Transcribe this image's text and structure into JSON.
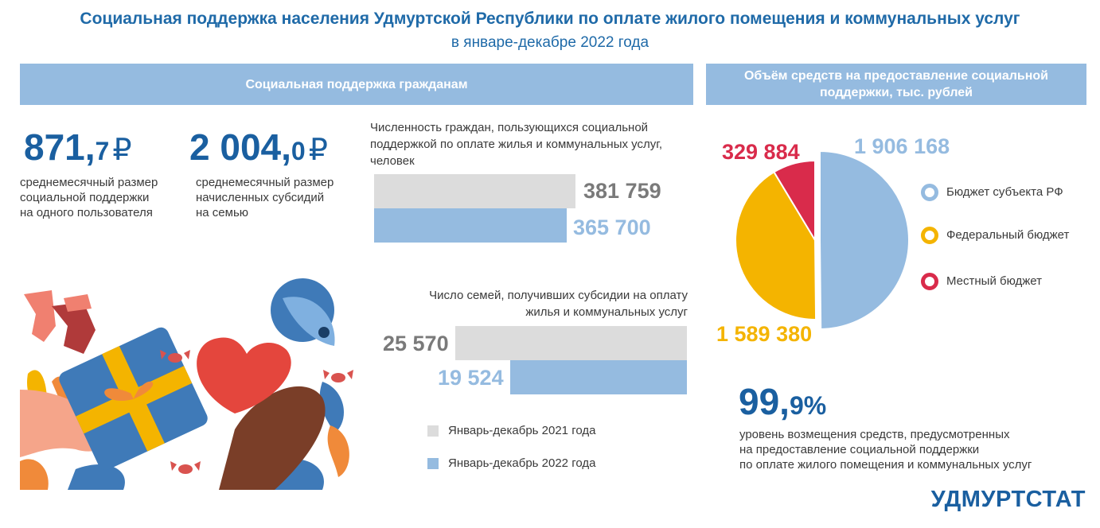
{
  "header": {
    "title": "Социальная поддержка населения Удмуртской Республики по оплате жилого помещения и коммунальных услуг",
    "subtitle": "в январе-декабре 2022 года"
  },
  "left_band": {
    "label": "Социальная поддержка гражданам"
  },
  "right_band": {
    "label_line1": "Объём средств на предоставление социальной",
    "label_line2": "поддержки, тыс. рублей"
  },
  "stat1": {
    "int": "871,",
    "dec": "7",
    "cur": "₽",
    "desc1": "среднемесячный размер",
    "desc2": "социальной поддержки",
    "desc3": "на одного пользователя"
  },
  "stat2": {
    "int": "2 004,",
    "dec": "0",
    "cur": "₽",
    "desc1": "среднемесячный размер",
    "desc2": "начисленных субсидий",
    "desc3": "на семью"
  },
  "stat3": {
    "int": "99,",
    "dec": "9%",
    "desc1": "уровень возмещения средств, предусмотренных",
    "desc2": "на предоставление социальной поддержки",
    "desc3": "по оплате жилого помещения и коммунальных услуг"
  },
  "colors": {
    "gray": "#dcdcdc",
    "blue": "#95bbe0",
    "yellow": "#f4b400",
    "red": "#d92b4b",
    "darkblue": "#1a5fa0"
  },
  "chart_data": [
    {
      "type": "bar",
      "title_line1": "Численность граждан, пользующихся социальной",
      "title_line2": "поддержкой по оплате жилья и коммунальных услуг,",
      "title_line3": "человек",
      "series": [
        {
          "name": "Январь-декабрь 2021 года",
          "value": 381759,
          "label": "381 759"
        },
        {
          "name": "Январь-декабрь 2022 года",
          "value": 365700,
          "label": "365 700"
        }
      ]
    },
    {
      "type": "bar",
      "title_line1": "Число семей, получивших субсидии на оплату",
      "title_line2": "жилья и коммунальных услуг",
      "series": [
        {
          "name": "Январь-декабрь 2021 года",
          "value": 25570,
          "label": "25 570"
        },
        {
          "name": "Январь-декабрь 2022 года",
          "value": 19524,
          "label": "19 524"
        }
      ]
    },
    {
      "type": "pie",
      "slices": [
        {
          "name": "Бюджет субъекта РФ",
          "value": 1906168,
          "label": "1 906 168"
        },
        {
          "name": "Федеральный бюджет",
          "value": 1589380,
          "label": "1 589 380"
        },
        {
          "name": "Местный бюджет",
          "value": 329884,
          "label": "329 884"
        }
      ]
    }
  ],
  "bar_legend": {
    "item1": "Январь-декабрь 2021 года",
    "item2": "Январь-декабрь 2022 года"
  },
  "footer": {
    "logo": "УДМУРТСТАТ"
  }
}
